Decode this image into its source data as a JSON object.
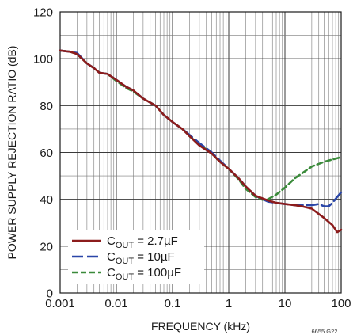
{
  "chart_data": {
    "type": "line",
    "xlabel": "FREQUENCY (kHz)",
    "ylabel": "POWER SUPPLY REJECTION RATIO (dB)",
    "x_scale": "log",
    "xlim": [
      0.001,
      100
    ],
    "ylim": [
      0,
      120
    ],
    "x_ticks": [
      "0.001",
      "0.01",
      "0.1",
      "1",
      "10",
      "100"
    ],
    "y_ticks": [
      "0",
      "20",
      "40",
      "60",
      "80",
      "100",
      "120"
    ],
    "grid": true,
    "legend_position": "bottom-left",
    "figure_id": "6655 G22",
    "series": [
      {
        "name": "C_OUT = 2.7µF",
        "legend": {
          "pre": "C",
          "sub": "OUT",
          "post": " = 2.7µF"
        },
        "color": "#8c1c1c",
        "dash": "solid",
        "x": [
          0.001,
          0.0015,
          0.002,
          0.003,
          0.004,
          0.005,
          0.007,
          0.01,
          0.015,
          0.02,
          0.03,
          0.05,
          0.07,
          0.1,
          0.15,
          0.2,
          0.3,
          0.5,
          0.7,
          1,
          1.5,
          2,
          3,
          5,
          7,
          10,
          15,
          20,
          30,
          50,
          70,
          85,
          100
        ],
        "y": [
          103.5,
          103,
          102,
          98,
          96,
          94,
          93.5,
          91,
          88,
          86.5,
          83,
          80,
          76,
          73,
          70,
          67,
          63,
          59.5,
          56,
          53,
          49,
          45.5,
          41.5,
          39.5,
          38.5,
          38,
          37.5,
          37,
          36,
          32,
          29,
          26,
          27
        ]
      },
      {
        "name": "C_OUT = 10µF",
        "legend": {
          "pre": "C",
          "sub": "OUT",
          "post": " = 10µF"
        },
        "color": "#2a46a8",
        "dash": "long",
        "x": [
          0.001,
          0.0015,
          0.002,
          0.003,
          0.004,
          0.005,
          0.007,
          0.01,
          0.015,
          0.02,
          0.03,
          0.05,
          0.07,
          0.1,
          0.15,
          0.2,
          0.3,
          0.5,
          0.7,
          1,
          1.5,
          2,
          3,
          5,
          7,
          10,
          15,
          20,
          30,
          40,
          50,
          60,
          70,
          85,
          100
        ],
        "y": [
          103.5,
          103,
          102.5,
          98,
          96,
          94,
          93.5,
          91,
          88,
          86.5,
          83,
          80,
          76,
          73,
          70,
          67.5,
          64,
          60,
          56.5,
          53,
          49,
          45.5,
          41.5,
          39,
          38.5,
          38,
          37.5,
          37.5,
          37.5,
          38,
          37,
          37,
          38.5,
          41,
          43
        ]
      },
      {
        "name": "C_OUT = 100µF",
        "legend": {
          "pre": "C",
          "sub": "OUT",
          "post": " = 100µF"
        },
        "color": "#3a8a3a",
        "dash": "short",
        "x": [
          0.001,
          0.0015,
          0.002,
          0.003,
          0.004,
          0.005,
          0.007,
          0.01,
          0.015,
          0.02,
          0.03,
          0.05,
          0.07,
          0.1,
          0.15,
          0.2,
          0.3,
          0.5,
          0.7,
          1,
          1.5,
          2,
          3,
          4,
          5,
          7,
          10,
          15,
          20,
          30,
          50,
          70,
          100
        ],
        "y": [
          103.5,
          103,
          102,
          98,
          96,
          94,
          93.5,
          90.5,
          87.5,
          86,
          83,
          80,
          76,
          73,
          70,
          67,
          63.5,
          59.5,
          56,
          53,
          48.5,
          44.5,
          41,
          39.8,
          40,
          42,
          45,
          49,
          51,
          54,
          56,
          57,
          58
        ]
      }
    ]
  }
}
